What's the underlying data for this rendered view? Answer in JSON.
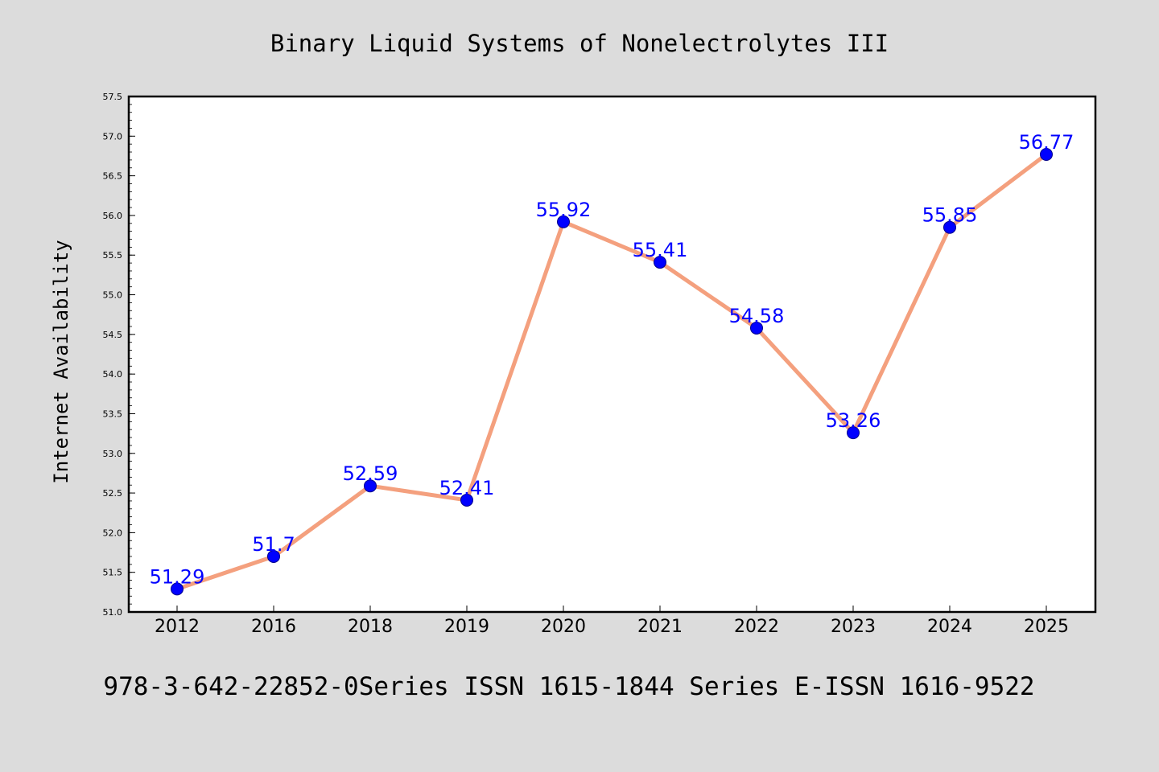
{
  "chart_data": {
    "type": "line",
    "title": "Binary Liquid Systems of Nonelectrolytes III",
    "xlabel": "",
    "ylabel": "Internet Availability",
    "categories": [
      "2012",
      "2016",
      "2018",
      "2019",
      "2020",
      "2021",
      "2022",
      "2023",
      "2024",
      "2025"
    ],
    "series": [
      {
        "values": [
          51.29,
          51.7,
          52.59,
          52.41,
          55.92,
          55.41,
          54.58,
          53.26,
          55.85,
          56.77
        ],
        "data_labels": [
          "51.29",
          "51.7",
          "52.59",
          "52.41",
          "55.92",
          "55.41",
          "54.58",
          "53.26",
          "55.85",
          "56.77"
        ]
      }
    ],
    "ylim": [
      51.0,
      57.5
    ],
    "y_ticks": [
      "51.0",
      "51.5",
      "52.0",
      "52.5",
      "53.0",
      "53.5",
      "54.0",
      "54.5",
      "55.0",
      "55.5",
      "56.0",
      "56.5",
      "57.0",
      "57.5"
    ],
    "y_tick_values": [
      51.0,
      51.5,
      52.0,
      52.5,
      53.0,
      53.5,
      54.0,
      54.5,
      55.0,
      55.5,
      56.0,
      56.5,
      57.0,
      57.5
    ],
    "grid": false,
    "legend": "none",
    "colors": {
      "line": "#f4a07e",
      "marker": "#0000ff",
      "label": "#0000ff",
      "background": "#dcdcdc",
      "plot_background": "#ffffff"
    }
  },
  "footer": {
    "text": "978-3-642-22852-0Series ISSN 1615-1844 Series E-ISSN 1616-9522"
  }
}
